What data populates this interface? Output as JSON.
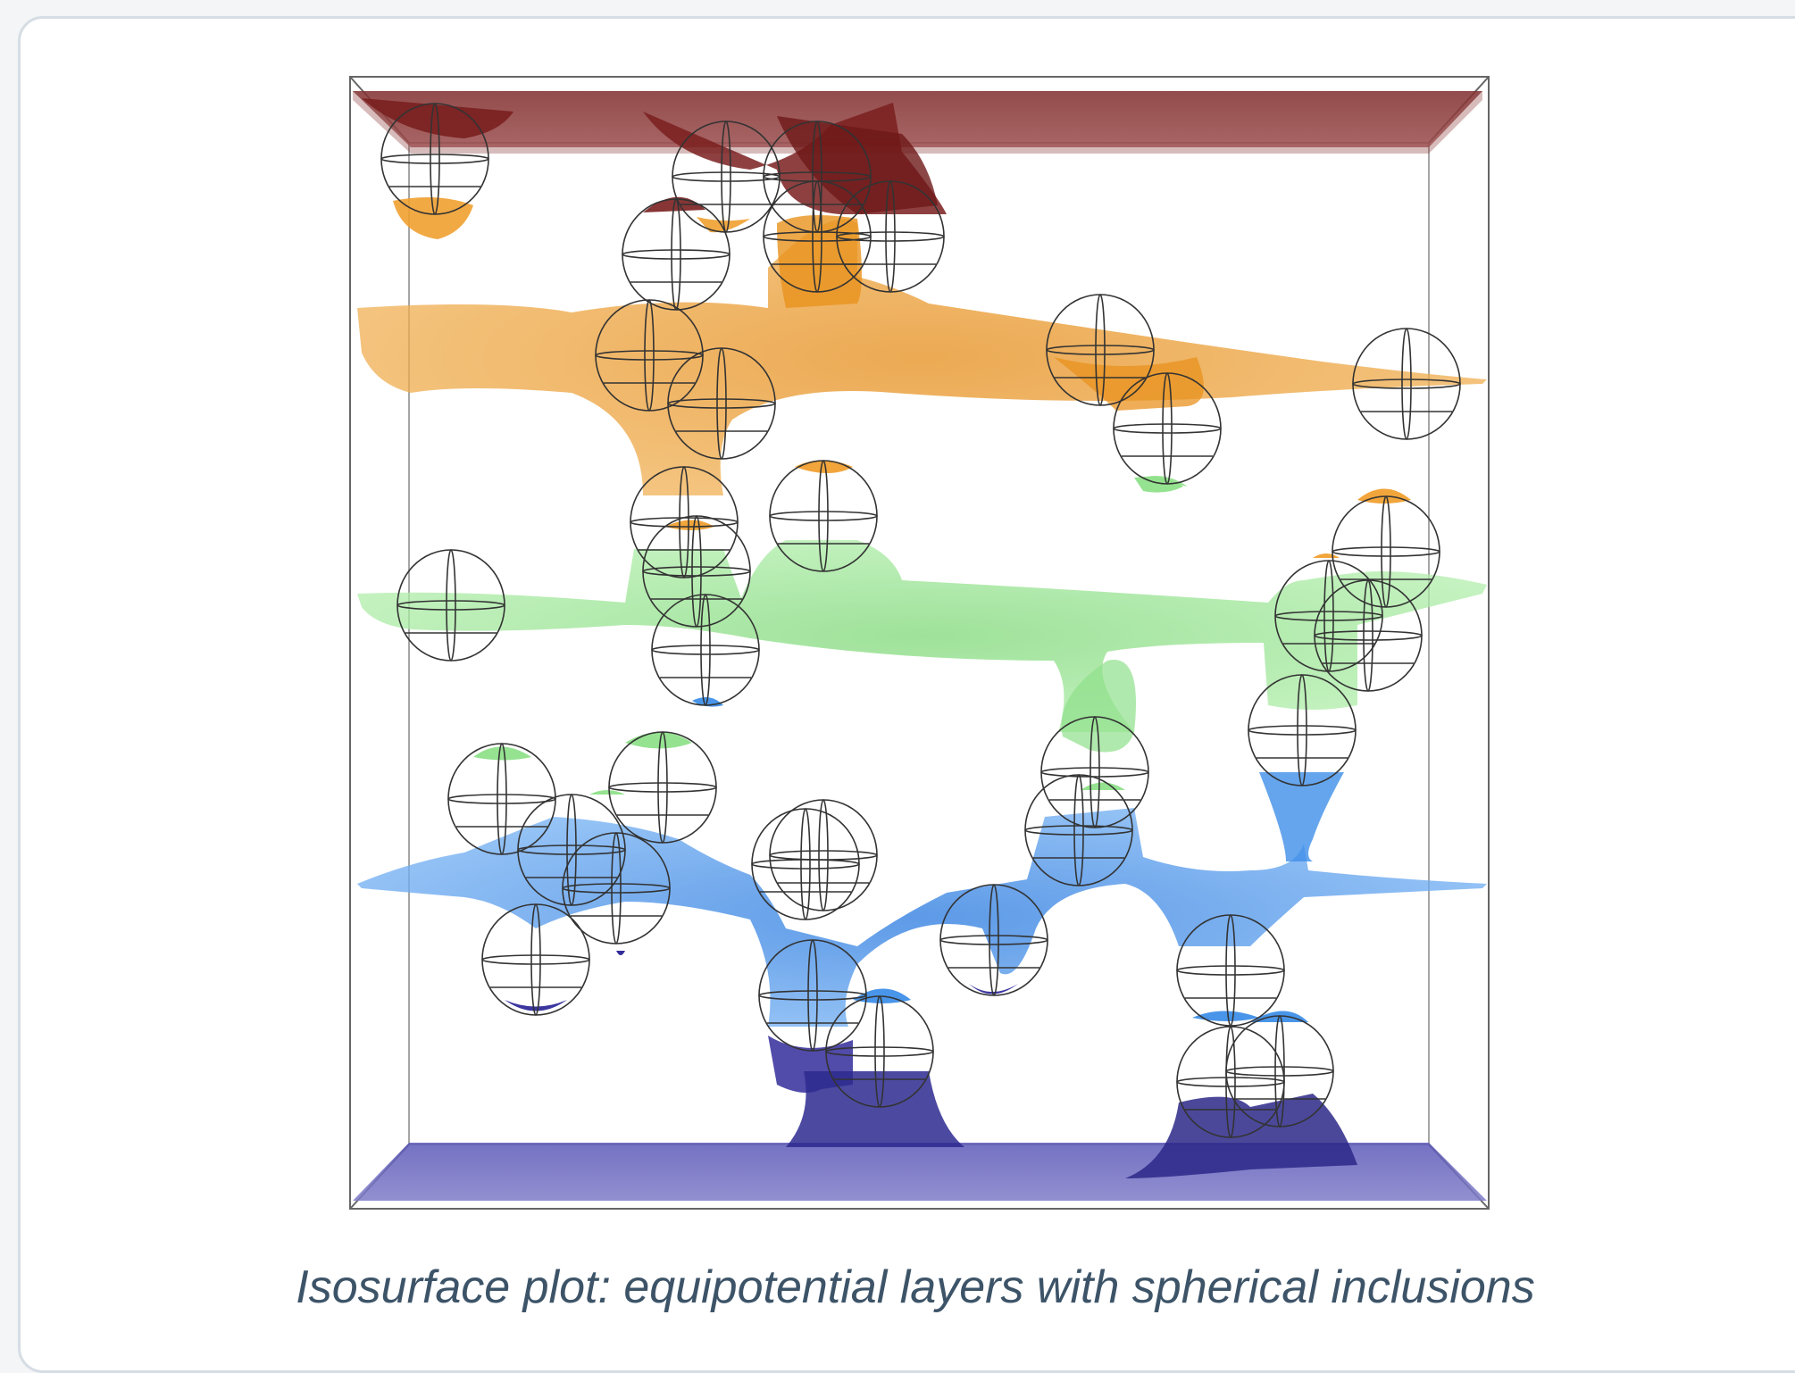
{
  "figure": {
    "caption": "Isosurface plot: equipotential layers with spherical inclusions",
    "colors": {
      "top_plate": "#8b3b3b",
      "orange_layer": "#f0a030",
      "green_layer": "#8fe08a",
      "blue_layer": "#3f8fe8",
      "bottom_plate": "#3a35a0",
      "box_edges": "#555555",
      "sphere_outline": "#333333"
    },
    "icons": [
      "sphere-icon"
    ]
  }
}
